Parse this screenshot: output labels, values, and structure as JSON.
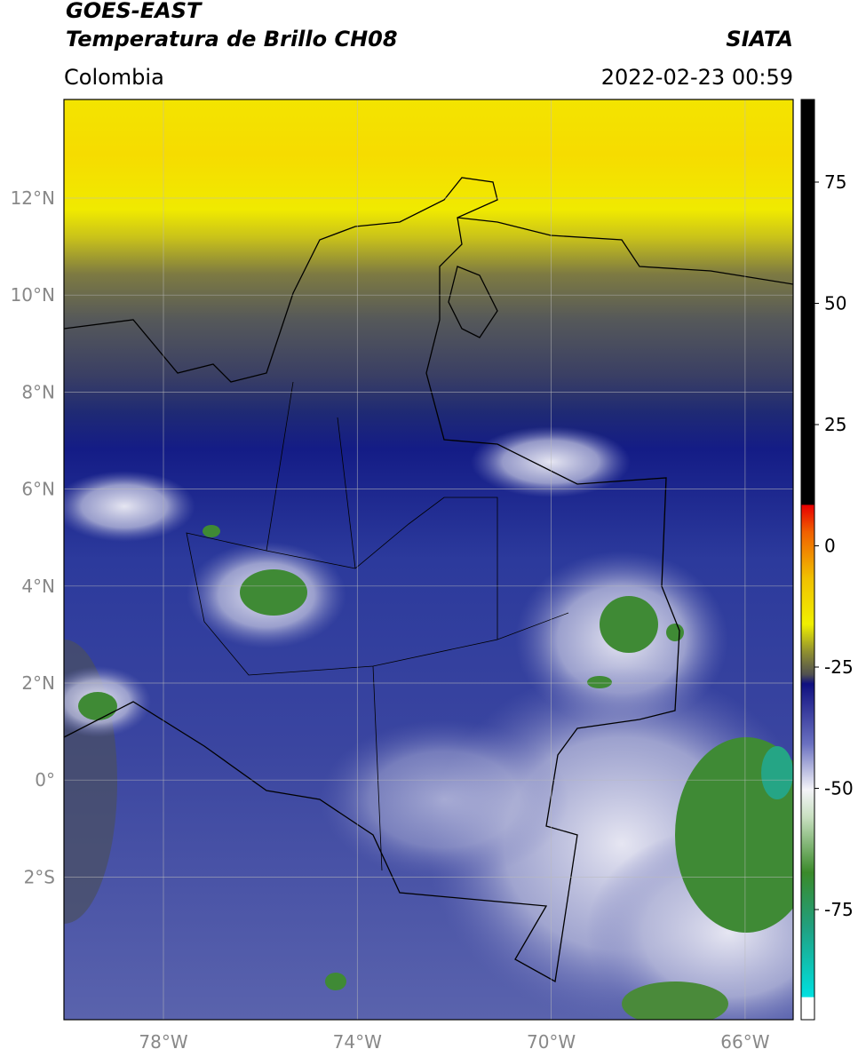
{
  "header": {
    "satellite": "GOES-EAST",
    "product": "Temperatura de Brillo CH08",
    "source": "SIATA",
    "region": "Colombia",
    "timestamp": "2022-02-23 00:59"
  },
  "map": {
    "lat_labels": [
      "12°N",
      "10°N",
      "8°N",
      "6°N",
      "4°N",
      "2°N",
      "0°",
      "2°S"
    ],
    "lon_labels": [
      "78°W",
      "74°W",
      "70°W",
      "66°W"
    ]
  },
  "colorbar": {
    "ticks": [
      75,
      50,
      25,
      0,
      -25,
      -50,
      -75
    ]
  }
}
